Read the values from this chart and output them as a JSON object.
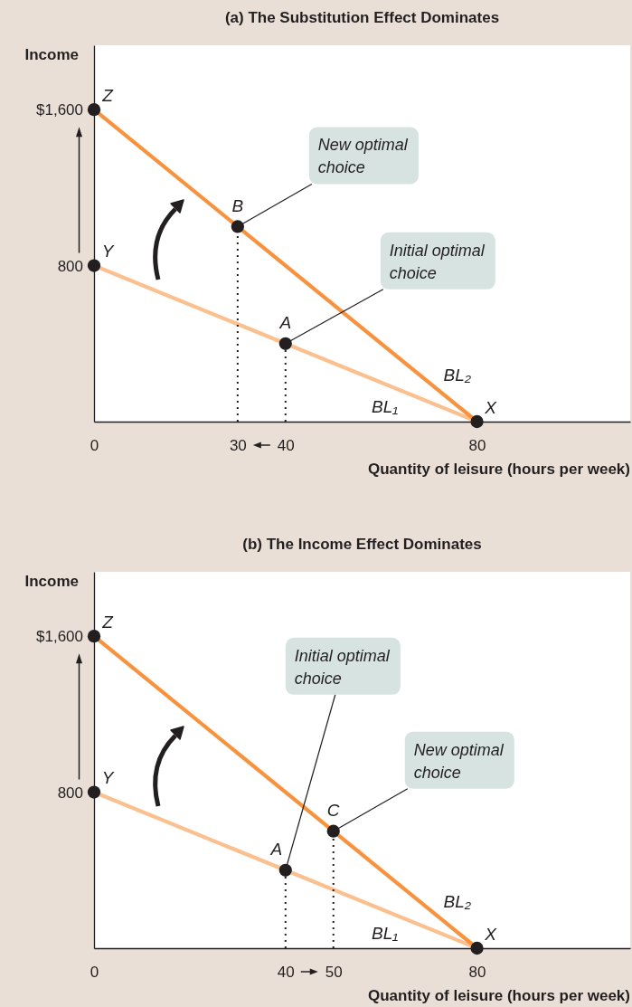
{
  "chart_data": [
    {
      "type": "line",
      "title": "(a) The Substitution Effect Dominates",
      "xlabel": "Quantity of leisure (hours per week)",
      "ylabel": "Income",
      "xlim": [
        0,
        112
      ],
      "ylim": [
        0,
        1930
      ],
      "xticks": [
        0,
        30,
        40,
        80
      ],
      "yticks": [
        800,
        {
          "value": 1600,
          "label": "$1,600"
        }
      ],
      "series": [
        {
          "type": "line",
          "name": "BL₁",
          "color": "#fbc08f",
          "x": [
            0,
            80
          ],
          "values": [
            800,
            0
          ]
        },
        {
          "type": "line",
          "name": "BL₂",
          "color": "#f7923e",
          "x": [
            0,
            80
          ],
          "values": [
            1600,
            0
          ]
        },
        {
          "type": "line",
          "color": "#231f20",
          "x": [
            40,
            40
          ],
          "values": [
            0,
            400
          ],
          "line_style": "dotted"
        },
        {
          "type": "line",
          "color": "#231f20",
          "x": [
            30,
            30
          ],
          "values": [
            0,
            1000
          ],
          "line_style": "dotted"
        },
        {
          "type": "scatter",
          "color": "#231f20",
          "x": [
            0,
            0,
            80,
            40,
            30
          ],
          "values": [
            1600,
            800,
            0,
            400,
            1000
          ],
          "marker": "circle"
        }
      ],
      "annotations": [
        {
          "text": "Z",
          "x": 0,
          "y": 1600
        },
        {
          "text": "Y",
          "x": 0,
          "y": 800
        },
        {
          "text": "X",
          "x": 80,
          "y": 0
        },
        {
          "text": "A",
          "x": 40,
          "y": 400
        },
        {
          "text": "B",
          "x": 30,
          "y": 1000
        },
        {
          "text": "New optimal choice",
          "x": 30,
          "y": 1000
        },
        {
          "text": "Initial optimal choice",
          "x": 40,
          "y": 400
        }
      ]
    },
    {
      "type": "line",
      "title": "(b) The Income Effect Dominates",
      "xlabel": "Quantity of leisure (hours per week)",
      "ylabel": "Income",
      "xlim": [
        0,
        112
      ],
      "ylim": [
        0,
        1930
      ],
      "xticks": [
        0,
        40,
        50,
        80
      ],
      "yticks": [
        800,
        {
          "value": 1600,
          "label": "$1,600"
        }
      ],
      "series": [
        {
          "type": "line",
          "name": "BL₁",
          "color": "#fbc08f",
          "x": [
            0,
            80
          ],
          "values": [
            800,
            0
          ]
        },
        {
          "type": "line",
          "name": "BL₂",
          "color": "#f7923e",
          "x": [
            0,
            80
          ],
          "values": [
            1600,
            0
          ]
        },
        {
          "type": "line",
          "color": "#231f20",
          "x": [
            40,
            40
          ],
          "values": [
            0,
            400
          ],
          "line_style": "dotted"
        },
        {
          "type": "line",
          "color": "#231f20",
          "x": [
            50,
            50
          ],
          "values": [
            0,
            600
          ],
          "line_style": "dotted"
        },
        {
          "type": "scatter",
          "color": "#231f20",
          "x": [
            0,
            0,
            80,
            40,
            50
          ],
          "values": [
            1600,
            800,
            0,
            400,
            600
          ],
          "marker": "circle"
        }
      ],
      "annotations": [
        {
          "text": "Z",
          "x": 0,
          "y": 1600
        },
        {
          "text": "Y",
          "x": 0,
          "y": 800
        },
        {
          "text": "X",
          "x": 80,
          "y": 0
        },
        {
          "text": "A",
          "x": 40,
          "y": 400
        },
        {
          "text": "C",
          "x": 50,
          "y": 600
        },
        {
          "text": "Initial optimal choice",
          "x": 40,
          "y": 400
        },
        {
          "text": "New optimal choice",
          "x": 50,
          "y": 600
        }
      ]
    }
  ]
}
